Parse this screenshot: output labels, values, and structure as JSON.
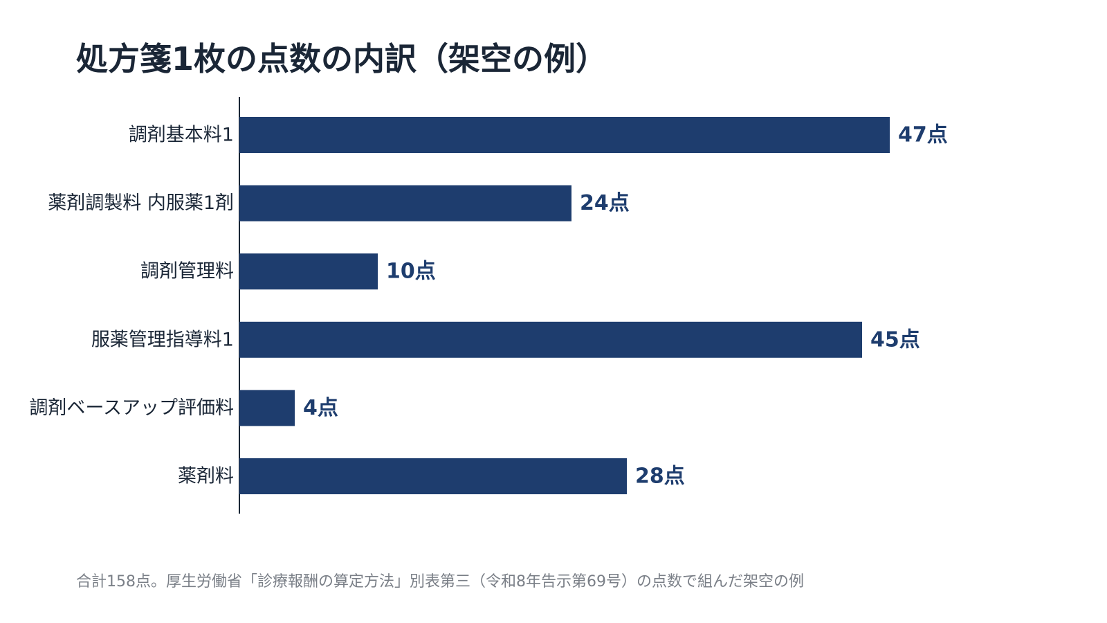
{
  "chart_data": {
    "type": "bar",
    "orientation": "horizontal",
    "title": "処方箋1枚の点数の内訳（架空の例）",
    "categories": [
      "調剤基本料1",
      "薬剤調製料 内服薬1剤",
      "調剤管理料",
      "服薬管理指導料1",
      "調剤ベースアップ評価料",
      "薬剤料"
    ],
    "values": [
      47,
      24,
      10,
      45,
      4,
      28
    ],
    "data_labels": [
      "47点",
      "24点",
      "10点",
      "45点",
      "4点",
      "28点"
    ],
    "unit": "点",
    "xlim": [
      0,
      50
    ],
    "grid": false,
    "legend": "none",
    "bar_color": "#1e3d6e",
    "label_color": "#1e3d6e",
    "axis_color": "#1a2636"
  },
  "footnote": "合計158点。厚生労働省「診療報酬の算定方法」別表第三（令和8年告示第69号）の点数で組んだ架空の例"
}
